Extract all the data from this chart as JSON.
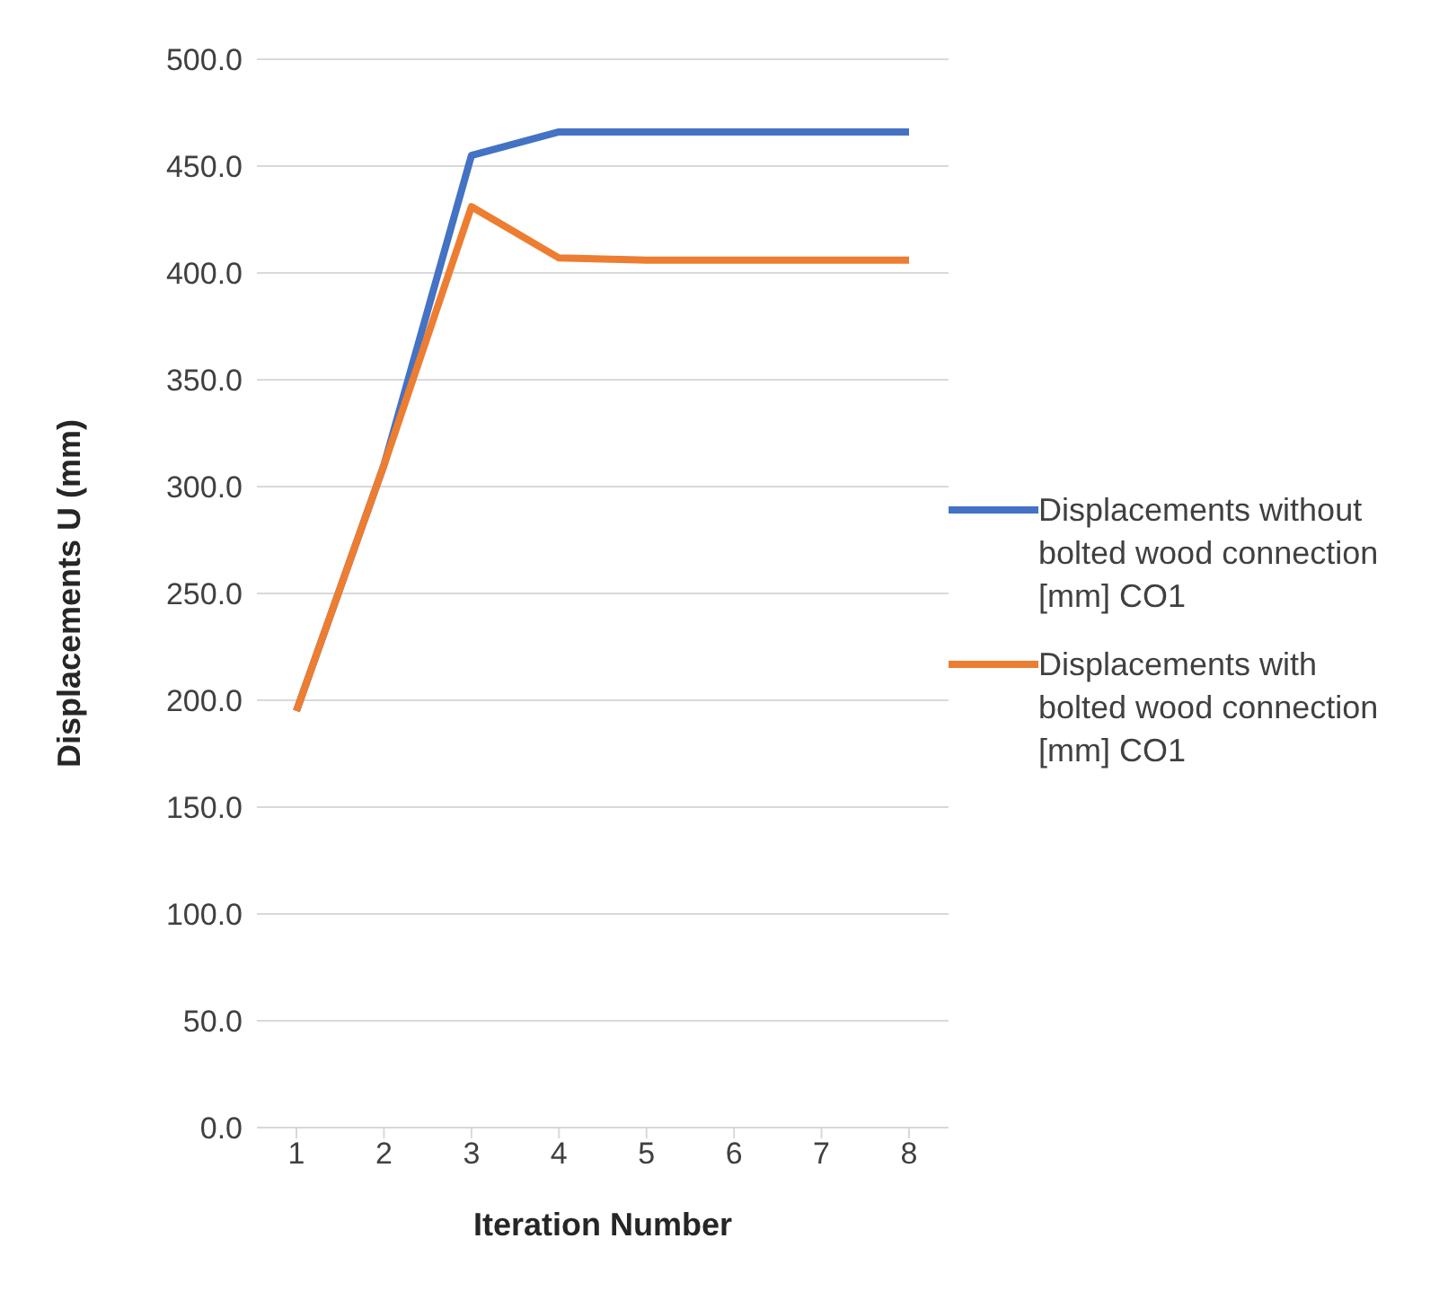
{
  "chart_data": {
    "type": "line",
    "xlabel": "Iteration Number",
    "ylabel": "Displacements U (mm)",
    "categories": [
      "1",
      "2",
      "3",
      "4",
      "5",
      "6",
      "7",
      "8"
    ],
    "series": [
      {
        "name": "Displacements without bolted  wood connection [mm] CO1",
        "color": "#4472c4",
        "values": [
          195,
          310,
          455,
          466,
          466,
          466,
          466,
          466
        ]
      },
      {
        "name": "Displacements with bolted wood connection  [mm] CO1",
        "color": "#ed7d31",
        "values": [
          195,
          310,
          431,
          407,
          406,
          406,
          406,
          406
        ]
      }
    ],
    "ylim": [
      0,
      500
    ],
    "yticks": [
      {
        "value": 0,
        "label": "0.0"
      },
      {
        "value": 50,
        "label": "50.0"
      },
      {
        "value": 100,
        "label": "100.0"
      },
      {
        "value": 150,
        "label": "150.0"
      },
      {
        "value": 200,
        "label": "200.0"
      },
      {
        "value": 250,
        "label": "250.0"
      },
      {
        "value": 300,
        "label": "300.0"
      },
      {
        "value": 350,
        "label": "350.0"
      },
      {
        "value": 400,
        "label": "400.0"
      },
      {
        "value": 450,
        "label": "450.0"
      },
      {
        "value": 500,
        "label": "500.0"
      }
    ],
    "grid": "y",
    "legend": "right",
    "marker": "none",
    "line_style": "solid"
  }
}
